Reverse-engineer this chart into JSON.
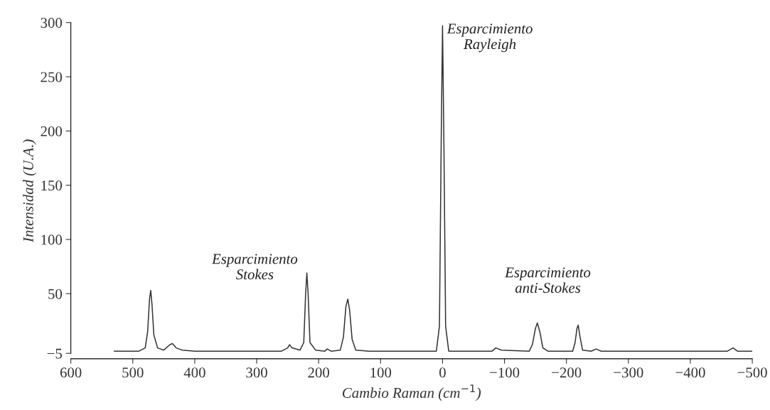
{
  "chart_data": {
    "type": "line",
    "xlabel": "Cambio Raman (cm$^{−1}$)",
    "ylabel": "Intensidad (U.A.)",
    "xlim": [
      600,
      -500
    ],
    "ylim": [
      -10,
      300
    ],
    "xticks": [
      600,
      500,
      400,
      300,
      200,
      100,
      0,
      {
        "value": -100,
        "label": "−100"
      },
      {
        "value": -200,
        "label": "−200"
      },
      {
        "value": -300,
        "label": "−300"
      },
      {
        "value": -400,
        "label": "−400"
      },
      {
        "value": -500,
        "label": "−500"
      }
    ],
    "yticks": [
      {
        "value": -5,
        "label": "−5"
      },
      50,
      100,
      150,
      200,
      250,
      300
    ],
    "grid": false,
    "marker": "none",
    "line_style": "solid",
    "series": [
      {
        "color": "#333333",
        "x": [
          530,
          490,
          480,
          476,
          473,
          471,
          469,
          466,
          460,
          450,
          440,
          436,
          430,
          420,
          400,
          260,
          250,
          247,
          243,
          230,
          224,
          221,
          219,
          217,
          214,
          205,
          190,
          186,
          180,
          165,
          160,
          156,
          153,
          150,
          146,
          140,
          120,
          10,
          5,
          2,
          0,
          -2,
          -5,
          -10,
          -80,
          -86,
          -95,
          -140,
          -145,
          -150,
          -153,
          -157,
          -162,
          -170,
          -210,
          -214,
          -217,
          -219,
          -222,
          -226,
          -240,
          -248,
          -256,
          -460,
          -469,
          -476,
          -500
        ],
        "values": [
          -3,
          -3,
          0,
          15,
          45,
          53,
          40,
          12,
          0,
          -2,
          3,
          4,
          0,
          -2,
          -3,
          -3,
          0,
          3,
          0,
          -2,
          5,
          50,
          69,
          50,
          5,
          -2,
          -3,
          -1,
          -3,
          -2,
          10,
          38,
          45,
          35,
          8,
          -2,
          -3,
          -3,
          20,
          200,
          297,
          200,
          20,
          -3,
          -3,
          0,
          -2,
          -3,
          3,
          18,
          23,
          15,
          0,
          -3,
          -3,
          5,
          18,
          21,
          10,
          -2,
          -3,
          -1,
          -3,
          -3,
          0,
          -3,
          -3
        ]
      }
    ],
    "annotations": [
      "Esparcimiento\nRayleigh",
      "Esparcimiento\nStokes",
      "Esparcimiento\nanti-Stokes"
    ]
  }
}
